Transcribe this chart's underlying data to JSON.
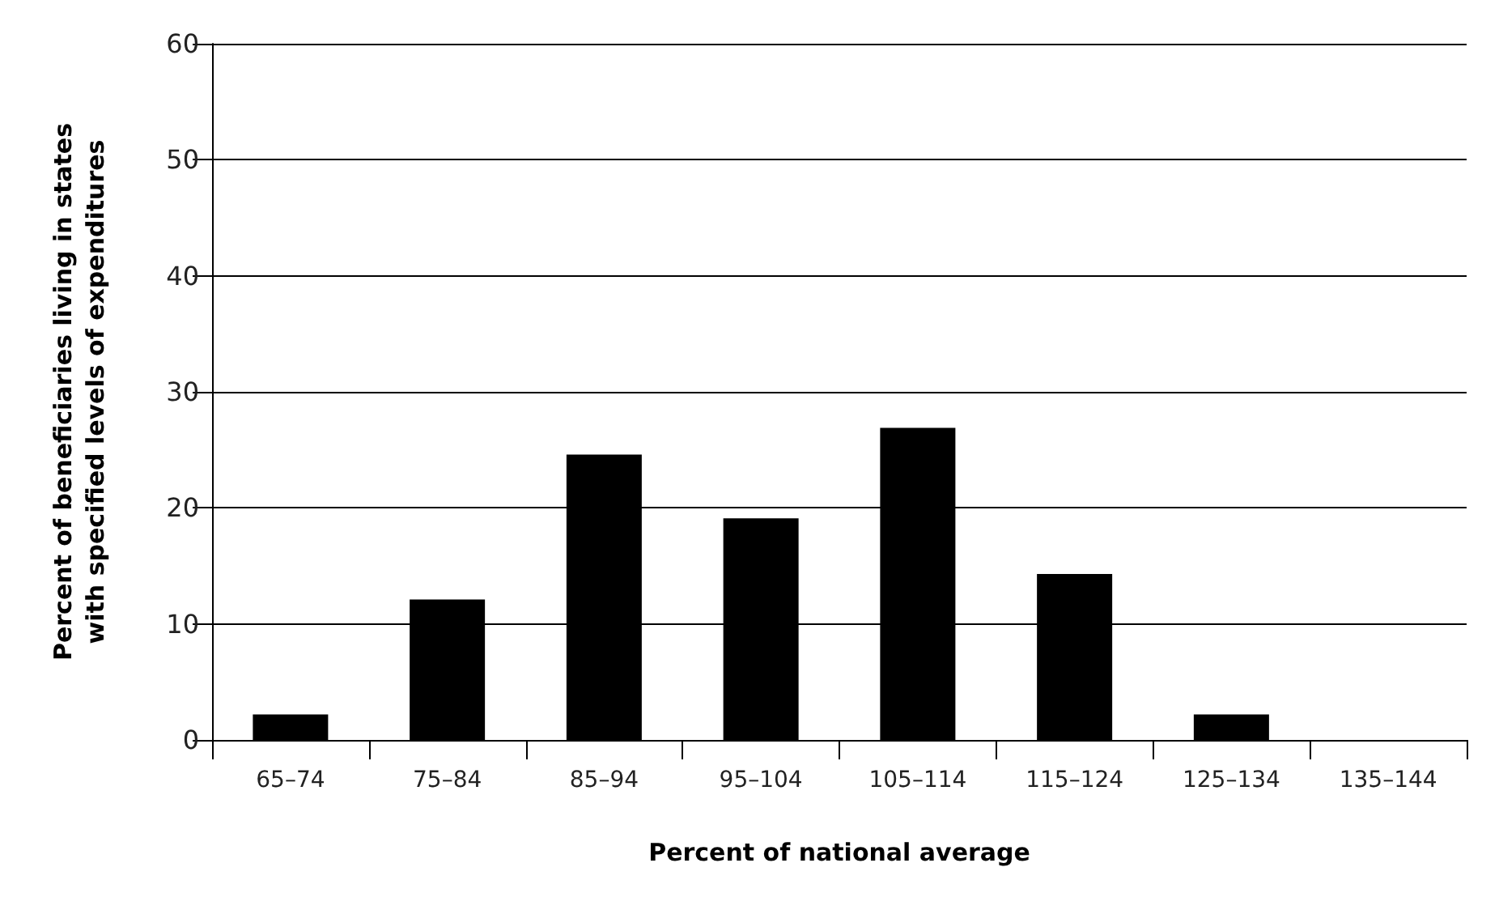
{
  "chart_data": {
    "type": "bar",
    "xlabel": "Percent of national average",
    "ylabel": "Percent of beneficiaries living in states\nwith specified levels of expenditures",
    "categories": [
      "65–74",
      "75–84",
      "85–94",
      "95–104",
      "105–114",
      "115–124",
      "125–134",
      "135–144"
    ],
    "values": [
      2.2,
      12.1,
      24.6,
      19.1,
      26.9,
      14.3,
      2.2,
      0
    ],
    "color": "#000000",
    "ylim": [
      0,
      60
    ],
    "yticks": [
      0,
      10,
      20,
      30,
      40,
      50,
      60
    ],
    "grid": "y"
  }
}
